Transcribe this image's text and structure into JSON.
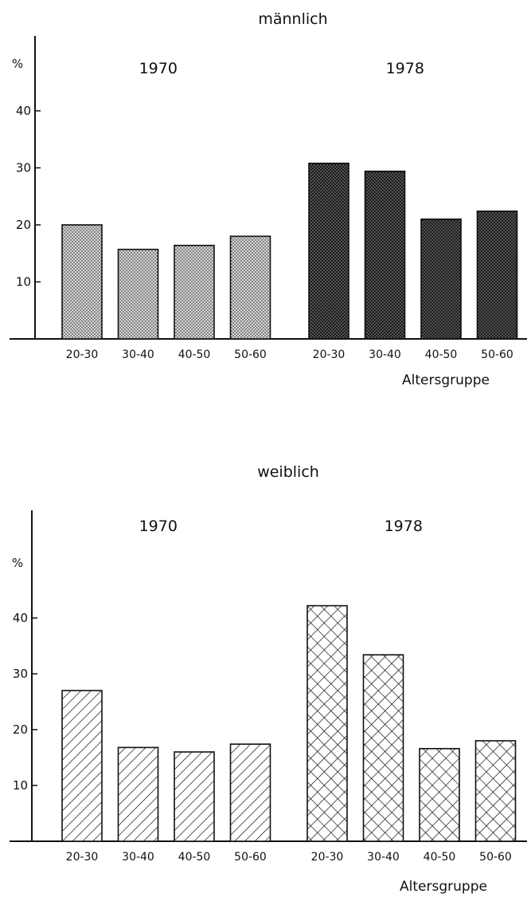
{
  "chart_data": [
    {
      "type": "bar",
      "title": "männlich",
      "ylabel": "%",
      "xlabel": "Altersgruppe",
      "ylim": [
        0,
        50
      ],
      "yticks": [
        10,
        20,
        30,
        40
      ],
      "grid": false,
      "groups": [
        {
          "name": "1970",
          "categories": [
            "20-30",
            "30-40",
            "40-50",
            "50-60"
          ],
          "values": [
            20,
            15.7,
            16.4,
            18
          ],
          "pattern": "dots"
        },
        {
          "name": "1978",
          "categories": [
            "20-30",
            "30-40",
            "40-50",
            "50-60"
          ],
          "values": [
            30.8,
            29.4,
            21,
            22.4
          ],
          "pattern": "dense-crosshatch"
        }
      ]
    },
    {
      "type": "bar",
      "title": "weiblich",
      "ylabel": "%",
      "xlabel": "Altersgruppe",
      "ylim": [
        0,
        50
      ],
      "yticks": [
        10,
        20,
        30,
        40
      ],
      "grid": false,
      "groups": [
        {
          "name": "1970",
          "categories": [
            "20-30",
            "30-40",
            "40-50",
            "50-60"
          ],
          "values": [
            27,
            16.8,
            16,
            17.4
          ],
          "pattern": "diagonal"
        },
        {
          "name": "1978",
          "categories": [
            "20-30",
            "30-40",
            "40-50",
            "50-60"
          ],
          "values": [
            42.2,
            33.4,
            16.6,
            18
          ],
          "pattern": "crosshatch"
        }
      ]
    }
  ]
}
